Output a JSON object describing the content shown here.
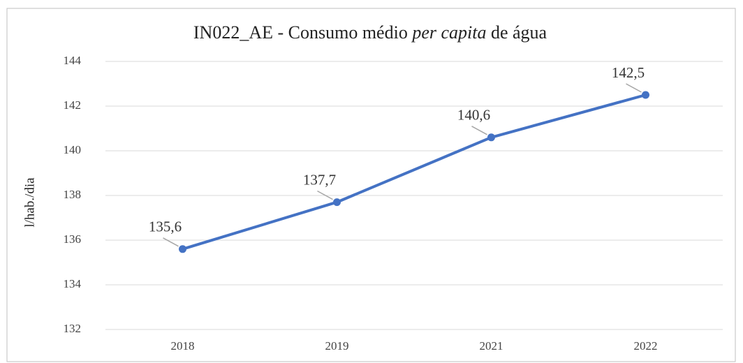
{
  "chart_data": {
    "type": "line",
    "title": [
      "IN022_AE - Consumo médio",
      "per capita",
      "de água"
    ],
    "y_label": "l/hab./dia",
    "categories": [
      "2018",
      "2019",
      "2021",
      "2022"
    ],
    "series": [
      {
        "name": "IN022_AE",
        "color": "#4472c4",
        "values": [
          135.6,
          137.7,
          140.6,
          142.5
        ],
        "value_labels": [
          "135,6",
          "137,7",
          "140,6",
          "142,5"
        ]
      }
    ],
    "ylim": [
      132,
      144
    ],
    "yticks": [
      132,
      134,
      136,
      138,
      140,
      142,
      144
    ],
    "grid": true
  }
}
